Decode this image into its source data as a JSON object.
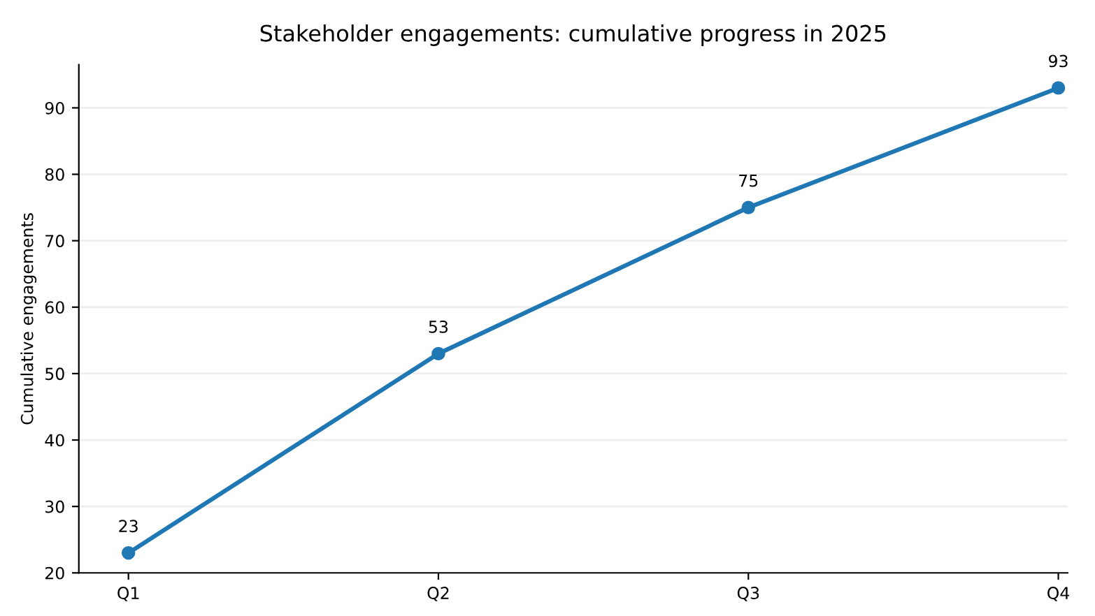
{
  "chart_data": {
    "type": "line",
    "title": "Stakeholder engagements: cumulative progress in 2025",
    "ylabel": "Cumulative engagements",
    "categories": [
      "Q1",
      "Q2",
      "Q3",
      "Q4"
    ],
    "series": [
      {
        "color": "#1f77b4",
        "values": [
          23,
          53,
          75,
          93
        ]
      }
    ],
    "ylim": [
      20,
      96.5
    ],
    "yticks": [
      20,
      30,
      40,
      50,
      60,
      70,
      80,
      90
    ],
    "grid": "y",
    "marker": "circle",
    "line_style": "solid",
    "data_labels": true
  }
}
